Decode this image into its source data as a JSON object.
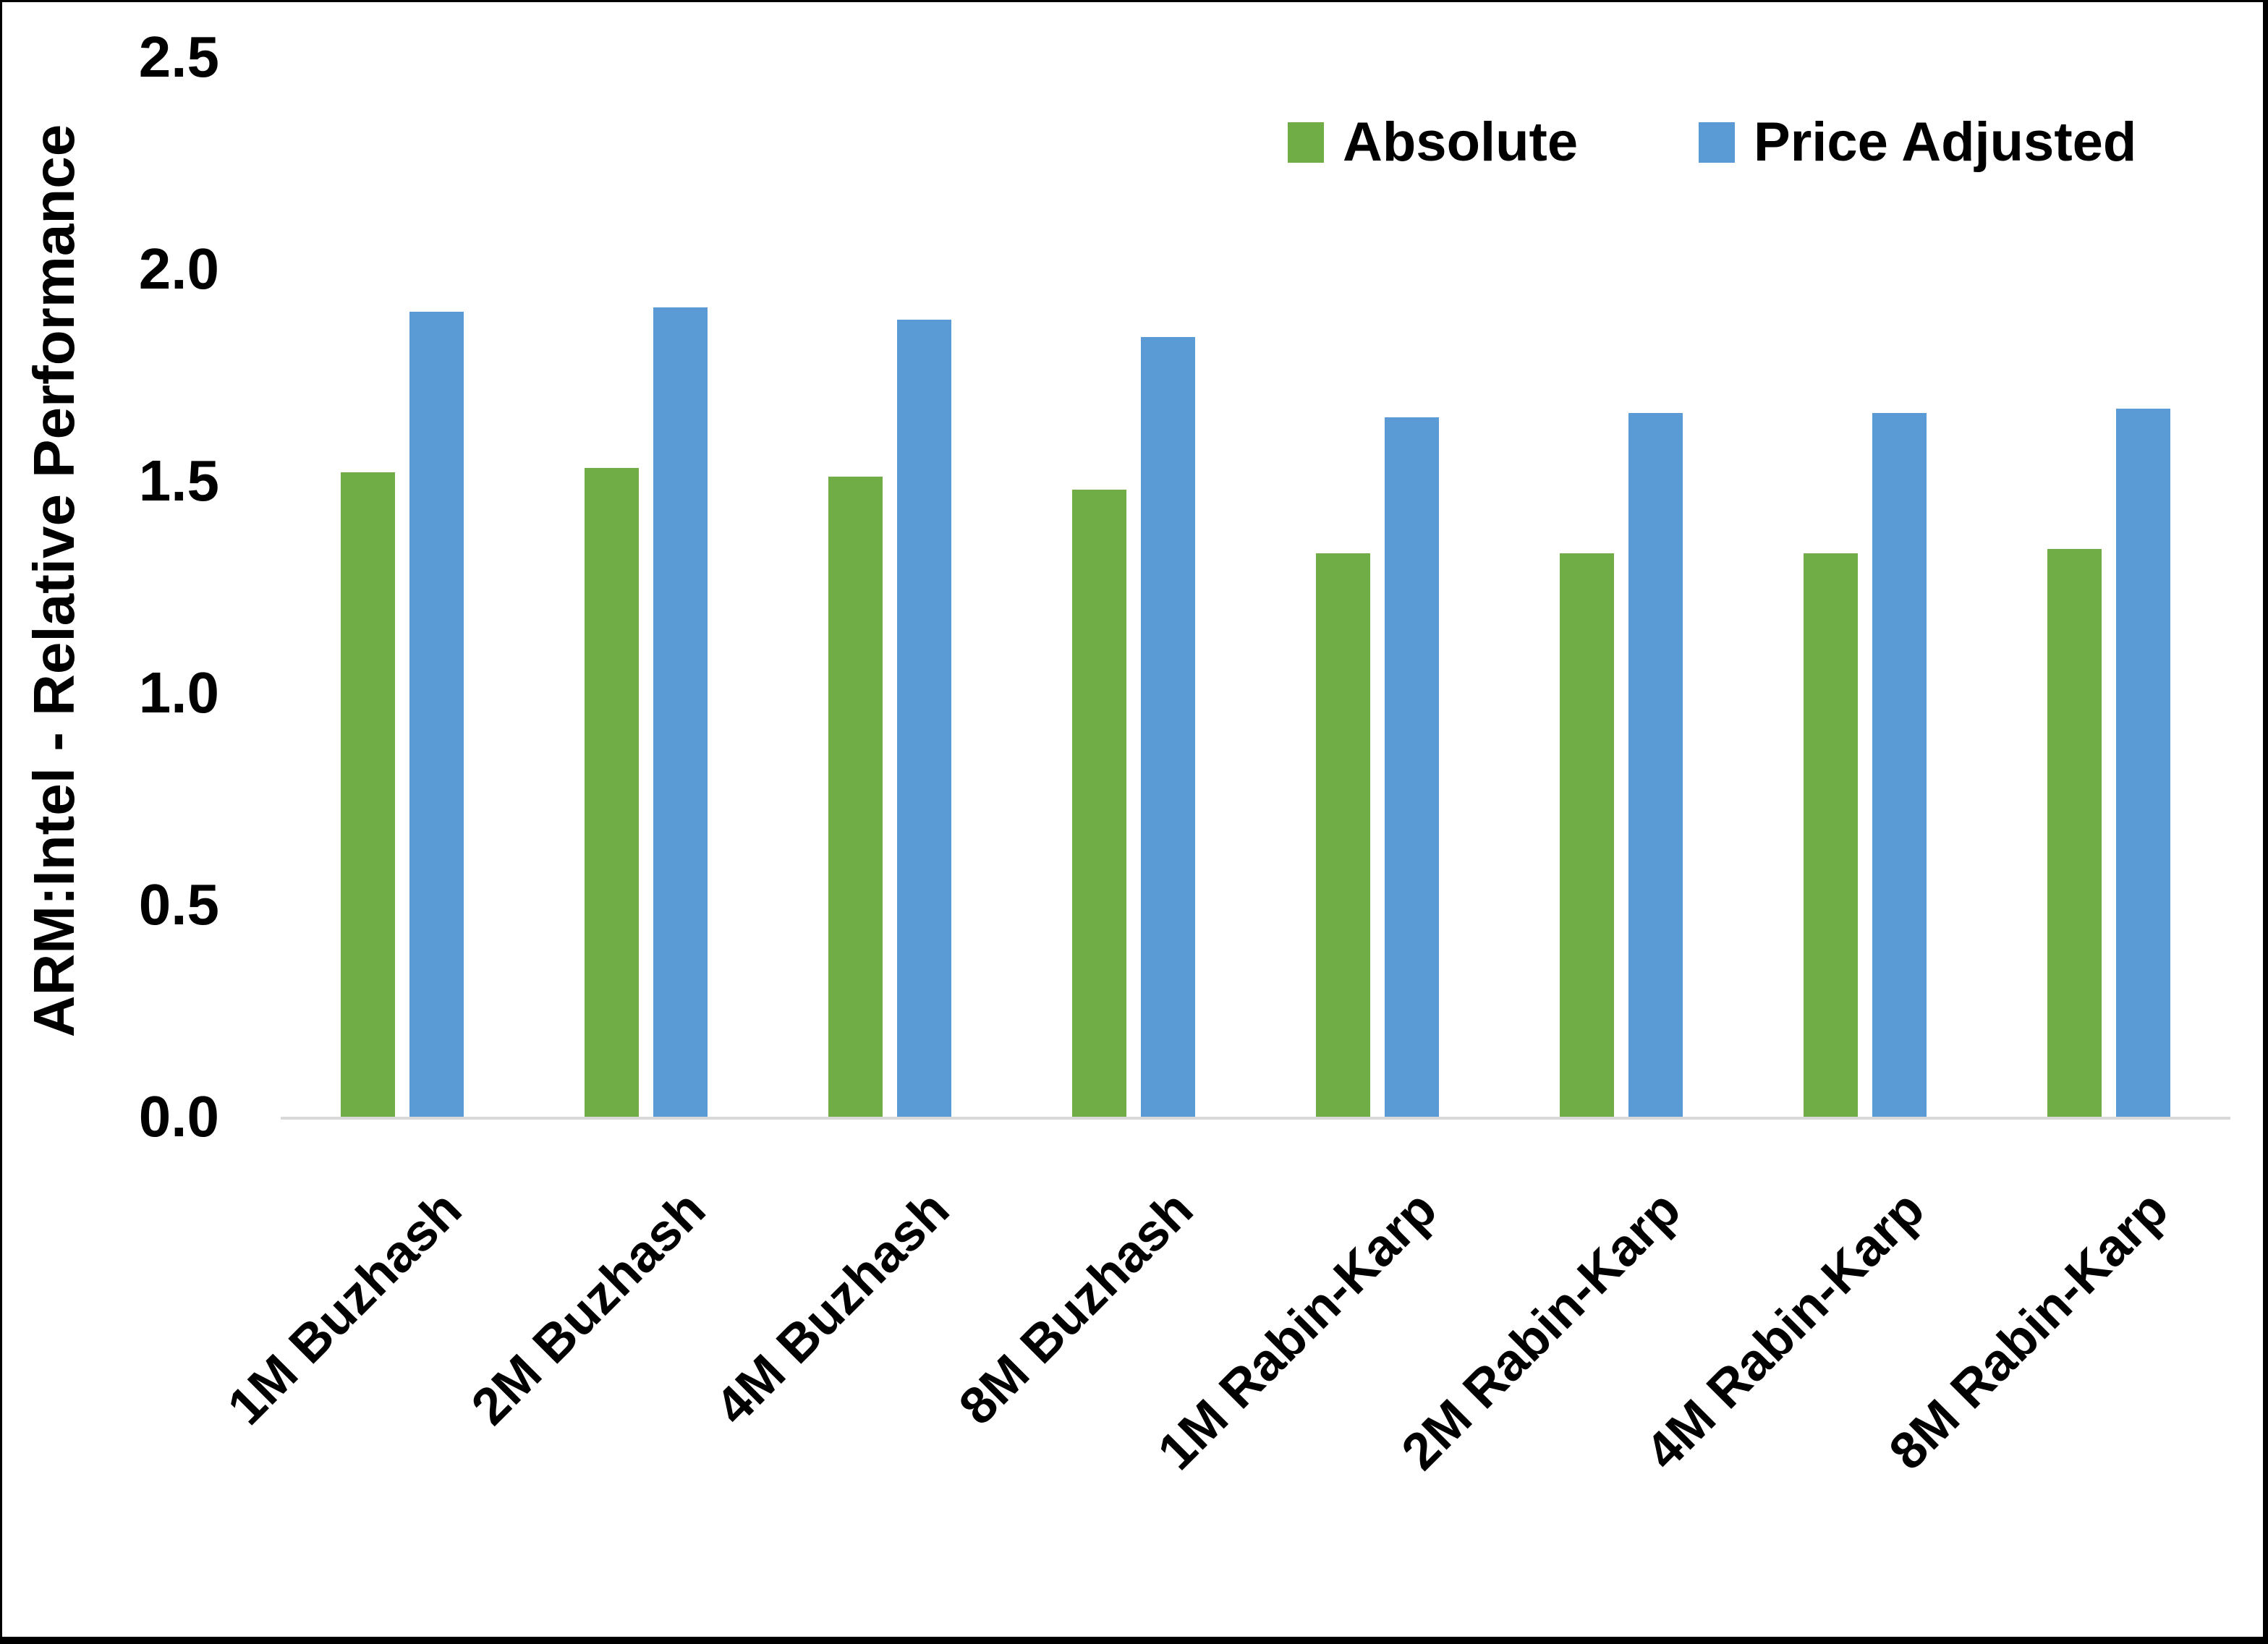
{
  "chart_data": {
    "type": "bar",
    "title": "",
    "categories": [
      "1M Buzhash",
      "2M Buzhash",
      "4M Buzhash",
      "8M Buzhash",
      "1M Rabin-Karp",
      "2M Rabin-Karp",
      "4M Rabin-Karp",
      "8M Rabin-Karp"
    ],
    "series": [
      {
        "name": "Absolute",
        "color": "#70AD47",
        "values": [
          1.52,
          1.53,
          1.51,
          1.48,
          1.33,
          1.33,
          1.33,
          1.34
        ]
      },
      {
        "name": "Price Adjusted",
        "color": "#5B9BD5",
        "values": [
          1.9,
          1.91,
          1.88,
          1.84,
          1.65,
          1.66,
          1.66,
          1.67
        ]
      }
    ],
    "xlabel": "",
    "ylabel": "ARM:Intel - Relative Performance",
    "ylim": [
      0,
      2.5
    ],
    "y_ticks": [
      "0.0",
      "0.5",
      "1.0",
      "1.5",
      "2.0",
      "2.5"
    ],
    "grid": false,
    "legend_position": "top-right",
    "baseline_color": "#D9D9D9",
    "text_color": "#000000"
  }
}
